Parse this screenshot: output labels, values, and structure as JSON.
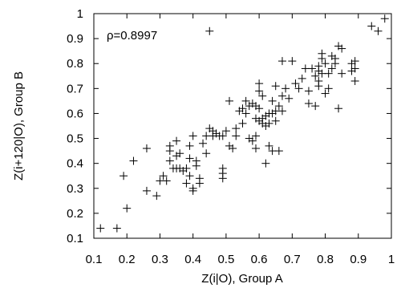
{
  "chart_data": {
    "type": "scatter",
    "title": "",
    "xlabel": "Z(i|O), Group A",
    "ylabel": "Z(i+120|O), Group B",
    "xlim": [
      0.1,
      1.0
    ],
    "ylim": [
      0.1,
      1.0
    ],
    "xticks": [
      "0.1",
      "0.2",
      "0.3",
      "0.4",
      "0.5",
      "0.6",
      "0.7",
      "0.8",
      "0.9",
      "1"
    ],
    "yticks": [
      "0.1",
      "0.2",
      "0.3",
      "0.4",
      "0.5",
      "0.6",
      "0.7",
      "0.8",
      "0.9",
      "1"
    ],
    "grid": false,
    "legend": "none",
    "marker": "plus",
    "annotation": "ρ=0.8997",
    "series": [
      {
        "points": [
          [
            0.12,
            0.14
          ],
          [
            0.17,
            0.14
          ],
          [
            0.19,
            0.35
          ],
          [
            0.2,
            0.22
          ],
          [
            0.22,
            0.41
          ],
          [
            0.26,
            0.46
          ],
          [
            0.26,
            0.29
          ],
          [
            0.29,
            0.27
          ],
          [
            0.3,
            0.33
          ],
          [
            0.31,
            0.35
          ],
          [
            0.32,
            0.33
          ],
          [
            0.33,
            0.47
          ],
          [
            0.33,
            0.45
          ],
          [
            0.33,
            0.41
          ],
          [
            0.34,
            0.38
          ],
          [
            0.35,
            0.49
          ],
          [
            0.35,
            0.43
          ],
          [
            0.35,
            0.38
          ],
          [
            0.36,
            0.44
          ],
          [
            0.36,
            0.38
          ],
          [
            0.37,
            0.37
          ],
          [
            0.38,
            0.38
          ],
          [
            0.38,
            0.32
          ],
          [
            0.39,
            0.47
          ],
          [
            0.39,
            0.42
          ],
          [
            0.39,
            0.35
          ],
          [
            0.4,
            0.51
          ],
          [
            0.4,
            0.3
          ],
          [
            0.4,
            0.29
          ],
          [
            0.41,
            0.41
          ],
          [
            0.41,
            0.39
          ],
          [
            0.42,
            0.34
          ],
          [
            0.42,
            0.32
          ],
          [
            0.43,
            0.48
          ],
          [
            0.44,
            0.44
          ],
          [
            0.44,
            0.51
          ],
          [
            0.45,
            0.93
          ],
          [
            0.45,
            0.54
          ],
          [
            0.46,
            0.53
          ],
          [
            0.46,
            0.51
          ],
          [
            0.47,
            0.52
          ],
          [
            0.48,
            0.51
          ],
          [
            0.49,
            0.51
          ],
          [
            0.49,
            0.38
          ],
          [
            0.49,
            0.36
          ],
          [
            0.49,
            0.34
          ],
          [
            0.5,
            0.53
          ],
          [
            0.51,
            0.65
          ],
          [
            0.51,
            0.47
          ],
          [
            0.52,
            0.46
          ],
          [
            0.53,
            0.51
          ],
          [
            0.53,
            0.54
          ],
          [
            0.54,
            0.61
          ],
          [
            0.55,
            0.62
          ],
          [
            0.55,
            0.56
          ],
          [
            0.56,
            0.65
          ],
          [
            0.56,
            0.6
          ],
          [
            0.57,
            0.63
          ],
          [
            0.57,
            0.5
          ],
          [
            0.58,
            0.64
          ],
          [
            0.58,
            0.49
          ],
          [
            0.59,
            0.51
          ],
          [
            0.59,
            0.46
          ],
          [
            0.59,
            0.63
          ],
          [
            0.59,
            0.58
          ],
          [
            0.6,
            0.72
          ],
          [
            0.6,
            0.69
          ],
          [
            0.6,
            0.62
          ],
          [
            0.6,
            0.57
          ],
          [
            0.61,
            0.67
          ],
          [
            0.61,
            0.56
          ],
          [
            0.61,
            0.58
          ],
          [
            0.62,
            0.59
          ],
          [
            0.62,
            0.4
          ],
          [
            0.62,
            0.55
          ],
          [
            0.63,
            0.6
          ],
          [
            0.63,
            0.56
          ],
          [
            0.63,
            0.47
          ],
          [
            0.64,
            0.45
          ],
          [
            0.64,
            0.65
          ],
          [
            0.64,
            0.6
          ],
          [
            0.65,
            0.71
          ],
          [
            0.65,
            0.61
          ],
          [
            0.65,
            0.57
          ],
          [
            0.66,
            0.63
          ],
          [
            0.66,
            0.45
          ],
          [
            0.67,
            0.81
          ],
          [
            0.67,
            0.67
          ],
          [
            0.67,
            0.61
          ],
          [
            0.68,
            0.7
          ],
          [
            0.69,
            0.66
          ],
          [
            0.7,
            0.81
          ],
          [
            0.71,
            0.72
          ],
          [
            0.72,
            0.7
          ],
          [
            0.73,
            0.74
          ],
          [
            0.74,
            0.78
          ],
          [
            0.75,
            0.69
          ],
          [
            0.75,
            0.64
          ],
          [
            0.76,
            0.78
          ],
          [
            0.77,
            0.75
          ],
          [
            0.77,
            0.63
          ],
          [
            0.78,
            0.79
          ],
          [
            0.78,
            0.77
          ],
          [
            0.78,
            0.73
          ],
          [
            0.78,
            0.71
          ],
          [
            0.79,
            0.82
          ],
          [
            0.79,
            0.84
          ],
          [
            0.79,
            0.76
          ],
          [
            0.8,
            0.8
          ],
          [
            0.8,
            0.68
          ],
          [
            0.81,
            0.76
          ],
          [
            0.81,
            0.7
          ],
          [
            0.82,
            0.83
          ],
          [
            0.82,
            0.78
          ],
          [
            0.83,
            0.82
          ],
          [
            0.83,
            0.8
          ],
          [
            0.84,
            0.87
          ],
          [
            0.84,
            0.62
          ],
          [
            0.85,
            0.86
          ],
          [
            0.85,
            0.76
          ],
          [
            0.88,
            0.8
          ],
          [
            0.88,
            0.77
          ],
          [
            0.89,
            0.81
          ],
          [
            0.89,
            0.78
          ],
          [
            0.89,
            0.73
          ],
          [
            0.94,
            0.95
          ],
          [
            0.96,
            0.93
          ],
          [
            0.98,
            0.98
          ]
        ]
      }
    ]
  }
}
